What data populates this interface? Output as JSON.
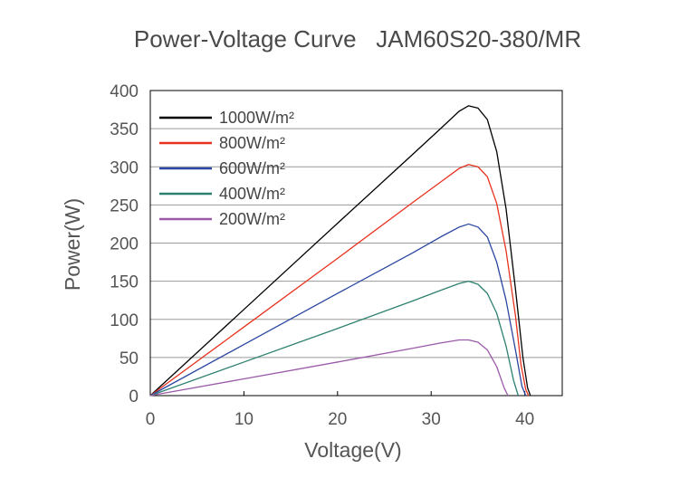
{
  "chart_data": {
    "type": "line",
    "title": "Power-Voltage Curve   JAM60S20-380/MR",
    "xlabel": "Voltage(V)",
    "ylabel": "Power(W)",
    "xlim": [
      0,
      44
    ],
    "ylim": [
      0,
      400
    ],
    "xticks": [
      0,
      10,
      20,
      30,
      40
    ],
    "yticks": [
      0,
      50,
      100,
      150,
      200,
      250,
      300,
      350,
      400
    ],
    "grid": "horizontal",
    "legend_position": "top-left",
    "series": [
      {
        "name": "1000W/m²",
        "color": "#000000",
        "x": [
          0,
          10,
          20,
          28,
          31,
          33,
          34,
          35,
          36,
          37,
          38,
          39,
          39.8,
          40.3,
          40.6
        ],
        "y": [
          0,
          113,
          226,
          316,
          350,
          373,
          380,
          377,
          362,
          320,
          245,
          140,
          50,
          10,
          0
        ]
      },
      {
        "name": "800W/m²",
        "color": "#e8321e",
        "x": [
          0,
          10,
          20,
          28,
          31,
          33,
          34,
          35,
          36,
          37,
          38,
          39,
          39.6,
          40.1,
          40.4
        ],
        "y": [
          0,
          90,
          180,
          253,
          280,
          298,
          303,
          300,
          287,
          252,
          190,
          105,
          40,
          8,
          0
        ]
      },
      {
        "name": "600W/m²",
        "color": "#2a46a0",
        "x": [
          0,
          10,
          20,
          28,
          31,
          33,
          34,
          35,
          36,
          37,
          38,
          39,
          39.7,
          40.1
        ],
        "y": [
          0,
          67,
          134,
          187,
          208,
          221,
          225,
          221,
          208,
          175,
          125,
          60,
          12,
          0
        ]
      },
      {
        "name": "400W/m²",
        "color": "#2d8070",
        "x": [
          0,
          10,
          20,
          28,
          31,
          33,
          34,
          35,
          36,
          37,
          38,
          38.8,
          39.3
        ],
        "y": [
          0,
          44,
          88,
          124,
          138,
          147,
          150,
          146,
          134,
          108,
          65,
          20,
          0
        ]
      },
      {
        "name": "200W/m²",
        "color": "#9b5aa8",
        "x": [
          0,
          10,
          20,
          28,
          31,
          33,
          34,
          35,
          36,
          37,
          37.8,
          38.2
        ],
        "y": [
          0,
          22,
          44,
          62,
          69,
          73,
          73,
          70,
          60,
          38,
          10,
          0
        ]
      }
    ]
  }
}
